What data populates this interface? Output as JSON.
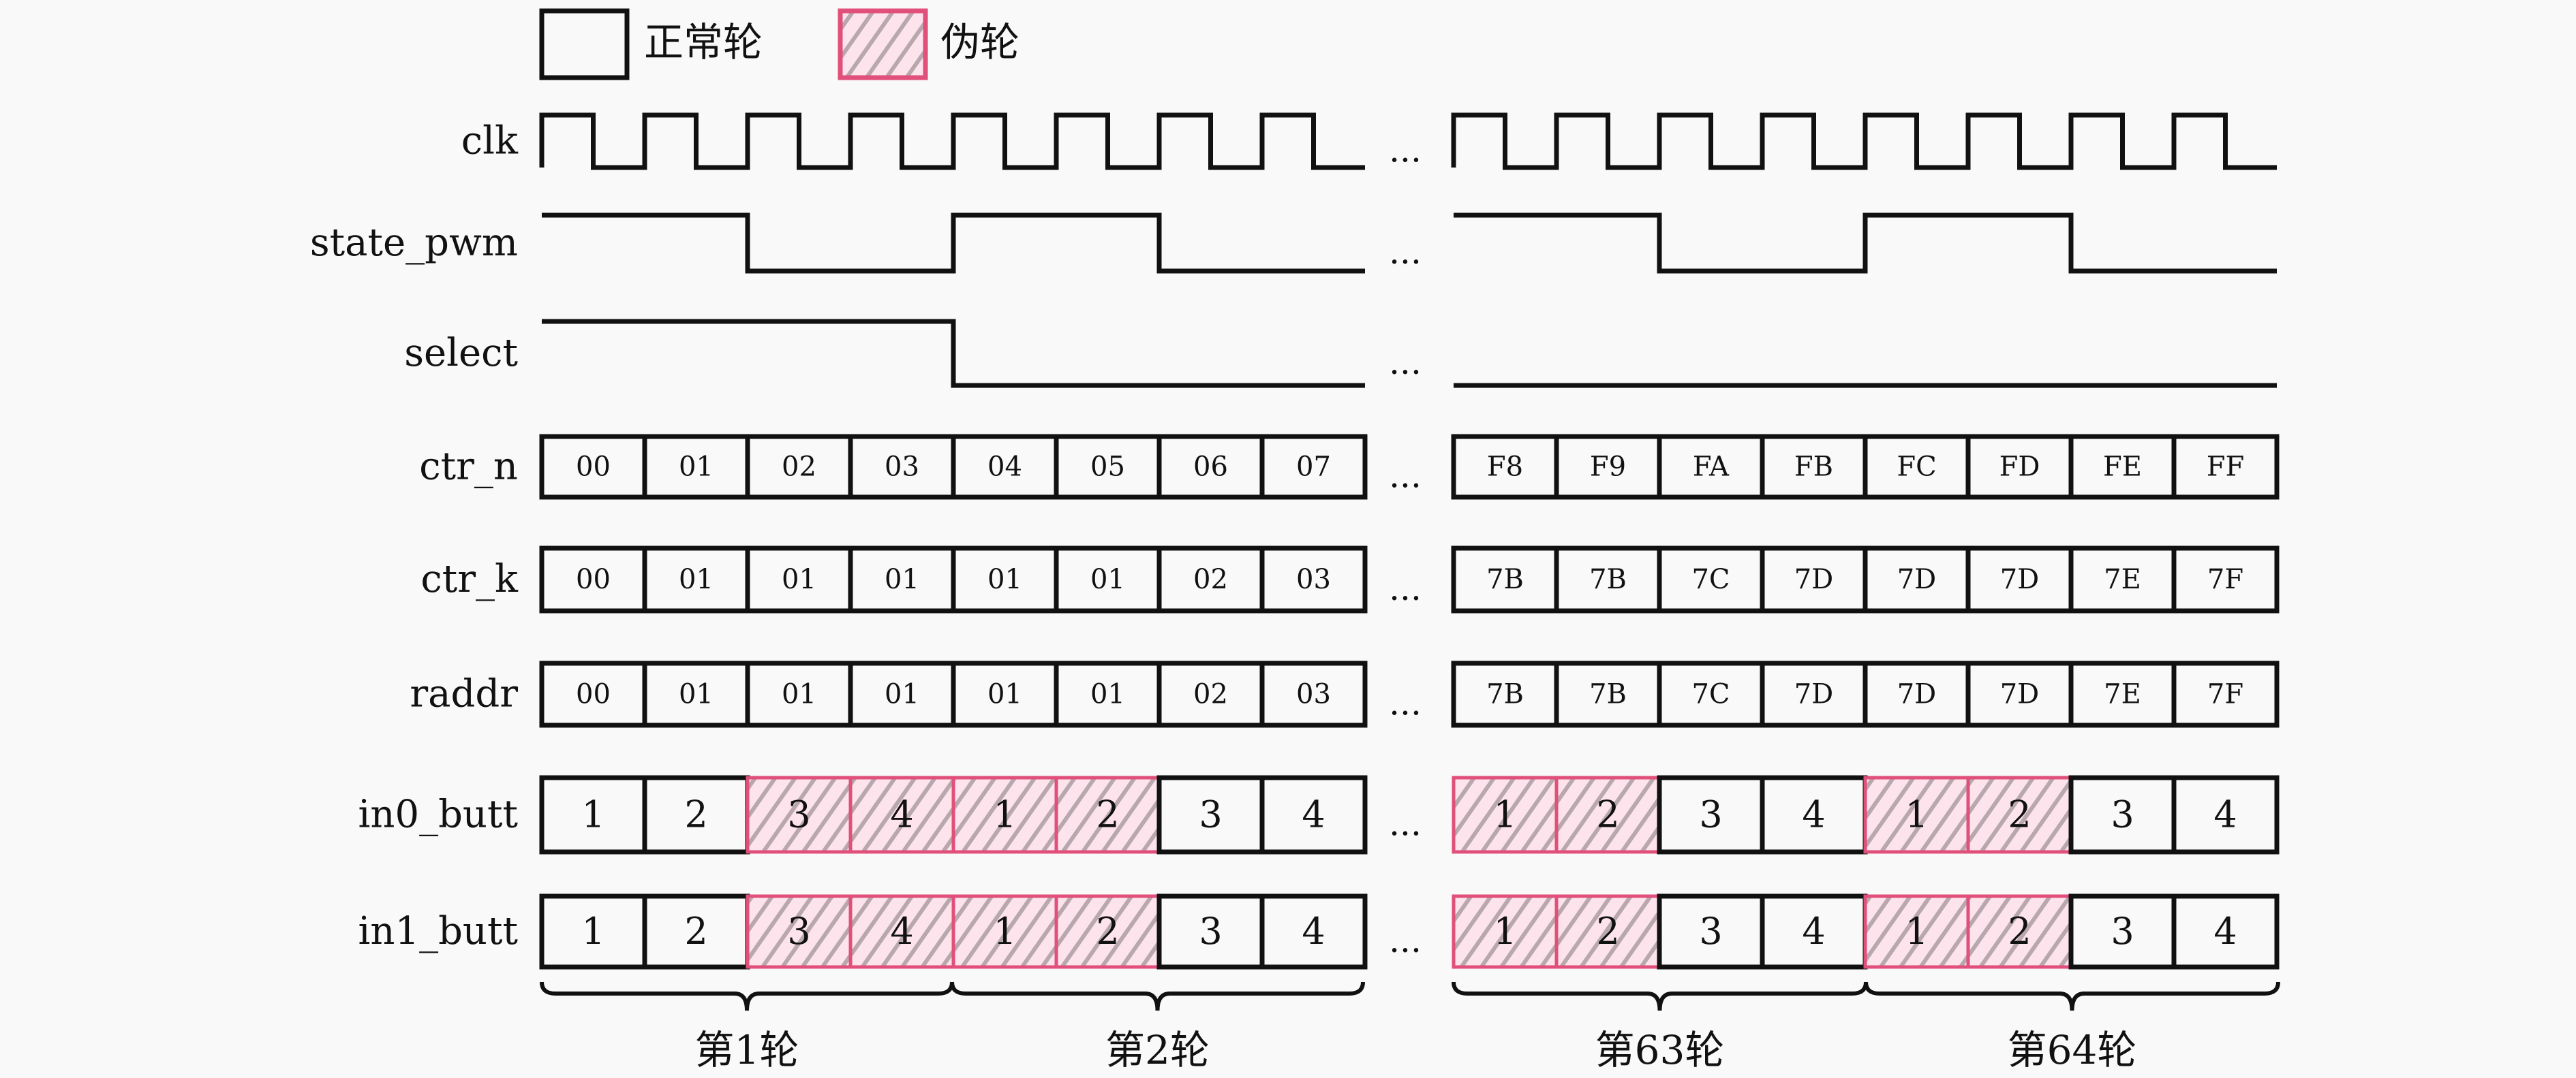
{
  "legend": [
    {
      "label": "正常轮",
      "kind": "normal"
    },
    {
      "label": "伪轮",
      "kind": "dummy"
    }
  ],
  "colors": {
    "line": "#111111",
    "dummy_border": "#e0507a",
    "dummy_fill": "#fde3ec",
    "dummy_stripe": "#b8a8ae",
    "background": "#f9f9f9"
  },
  "ellipsis": "...",
  "signals": [
    {
      "name": "clk",
      "type": "clock",
      "groups": [
        [
          1,
          1,
          1,
          1,
          1,
          1,
          1,
          1
        ],
        [
          1,
          1,
          1,
          1,
          1,
          1,
          1,
          1
        ]
      ]
    },
    {
      "name": "state_pwm",
      "type": "level",
      "groups": [
        [
          1,
          1,
          0,
          0,
          1,
          1,
          0,
          0
        ],
        [
          1,
          1,
          0,
          0,
          1,
          1,
          0,
          0
        ]
      ]
    },
    {
      "name": "select",
      "type": "level",
      "groups": [
        [
          1,
          1,
          1,
          1,
          0,
          0,
          0,
          0
        ],
        [
          0,
          0,
          0,
          0,
          0,
          0,
          0,
          0
        ]
      ]
    },
    {
      "name": "ctr_n",
      "type": "bus",
      "groups": [
        [
          "00",
          "01",
          "02",
          "03",
          "04",
          "05",
          "06",
          "07"
        ],
        [
          "F8",
          "F9",
          "FA",
          "FB",
          "FC",
          "FD",
          "FE",
          "FF"
        ]
      ]
    },
    {
      "name": "ctr_k",
      "type": "bus",
      "groups": [
        [
          "00",
          "01",
          "01",
          "01",
          "01",
          "01",
          "02",
          "03"
        ],
        [
          "7B",
          "7B",
          "7C",
          "7D",
          "7D",
          "7D",
          "7E",
          "7F"
        ]
      ]
    },
    {
      "name": "raddr",
      "type": "bus",
      "groups": [
        [
          "00",
          "01",
          "01",
          "01",
          "01",
          "01",
          "02",
          "03"
        ],
        [
          "7B",
          "7B",
          "7C",
          "7D",
          "7D",
          "7D",
          "7E",
          "7F"
        ]
      ]
    },
    {
      "name": "in0_butt",
      "type": "butt",
      "groups": [
        [
          "1",
          "2",
          "3",
          "4",
          "1",
          "2",
          "3",
          "4"
        ],
        [
          "1",
          "2",
          "3",
          "4",
          "1",
          "2",
          "3",
          "4"
        ]
      ],
      "dummy": [
        [
          false,
          false,
          true,
          true,
          true,
          true,
          false,
          false
        ],
        [
          true,
          true,
          false,
          false,
          true,
          true,
          false,
          false
        ]
      ]
    },
    {
      "name": "in1_butt",
      "type": "butt",
      "groups": [
        [
          "1",
          "2",
          "3",
          "4",
          "1",
          "2",
          "3",
          "4"
        ],
        [
          "1",
          "2",
          "3",
          "4",
          "1",
          "2",
          "3",
          "4"
        ]
      ],
      "dummy": [
        [
          false,
          false,
          true,
          true,
          true,
          true,
          false,
          false
        ],
        [
          true,
          true,
          false,
          false,
          true,
          true,
          false,
          false
        ]
      ]
    }
  ],
  "rounds": [
    "第1轮",
    "第2轮",
    "第63轮",
    "第64轮"
  ]
}
